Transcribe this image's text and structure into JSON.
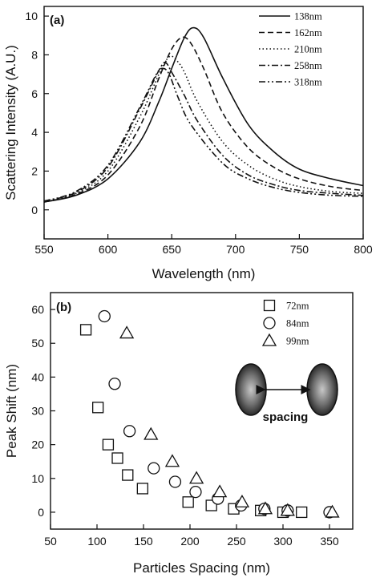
{
  "chart_data": [
    {
      "type": "line",
      "panel_label": "(a)",
      "xlabel": "Wavelength (nm)",
      "ylabel": "Scattering Intensity (A.U.)",
      "xlim": [
        550,
        800
      ],
      "ylim": [
        -1.5,
        10.5
      ],
      "xticks": [
        550,
        600,
        650,
        700,
        750,
        800
      ],
      "yticks": [
        0,
        2,
        4,
        6,
        8,
        10
      ],
      "legend_position": "top-right",
      "series": [
        {
          "name": "138nm",
          "style": "solid",
          "x": [
            550,
            575,
            600,
            625,
            640,
            650,
            660,
            667,
            675,
            690,
            710,
            730,
            750,
            775,
            800
          ],
          "y": [
            0.4,
            0.75,
            1.6,
            3.5,
            5.6,
            7.3,
            8.9,
            9.4,
            8.9,
            6.8,
            4.4,
            3.0,
            2.1,
            1.6,
            1.25
          ]
        },
        {
          "name": "162nm",
          "style": "dashed",
          "x": [
            550,
            575,
            600,
            625,
            640,
            650,
            658,
            665,
            675,
            690,
            710,
            730,
            750,
            775,
            800
          ],
          "y": [
            0.4,
            0.8,
            1.8,
            4.3,
            6.8,
            8.3,
            8.9,
            8.6,
            7.3,
            5.0,
            3.2,
            2.2,
            1.6,
            1.2,
            1.0
          ]
        },
        {
          "name": "210nm",
          "style": "dotted",
          "x": [
            550,
            575,
            600,
            625,
            640,
            648,
            654,
            660,
            670,
            690,
            710,
            730,
            750,
            775,
            800
          ],
          "y": [
            0.4,
            0.85,
            2.0,
            4.8,
            7.0,
            7.9,
            7.7,
            7.1,
            5.6,
            3.5,
            2.3,
            1.6,
            1.2,
            0.95,
            0.85
          ]
        },
        {
          "name": "258nm",
          "style": "dashdot",
          "x": [
            550,
            575,
            600,
            625,
            640,
            645,
            650,
            660,
            670,
            690,
            710,
            730,
            750,
            775,
            800
          ],
          "y": [
            0.45,
            0.9,
            2.2,
            5.2,
            7.2,
            7.6,
            7.1,
            5.9,
            4.6,
            2.8,
            1.8,
            1.3,
            1.0,
            0.85,
            0.75
          ]
        },
        {
          "name": "318nm",
          "style": "dashdotdot",
          "x": [
            550,
            575,
            600,
            625,
            638,
            643,
            648,
            655,
            665,
            690,
            710,
            730,
            750,
            775,
            800
          ],
          "y": [
            0.45,
            0.95,
            2.3,
            5.3,
            7.0,
            7.3,
            7.0,
            5.8,
            4.4,
            2.4,
            1.6,
            1.15,
            0.9,
            0.75,
            0.7
          ]
        }
      ]
    },
    {
      "type": "scatter",
      "panel_label": "(b)",
      "xlabel": "Particles Spacing (nm)",
      "ylabel": "Peak Shift (nm)",
      "xlim": [
        50,
        375
      ],
      "ylim": [
        -5,
        65
      ],
      "xticks": [
        50,
        100,
        150,
        200,
        250,
        300,
        350
      ],
      "yticks": [
        0,
        10,
        20,
        30,
        40,
        50,
        60
      ],
      "legend_position": "top-right",
      "annotation": "spacing",
      "series": [
        {
          "name": "72nm",
          "marker": "square",
          "x": [
            88,
            101,
            112,
            122,
            133,
            149,
            198,
            223,
            247,
            276,
            300,
            320
          ],
          "y": [
            54,
            31,
            20,
            16,
            11,
            7,
            3,
            2,
            1,
            0.5,
            0,
            0
          ]
        },
        {
          "name": "84nm",
          "marker": "circle",
          "x": [
            108,
            119,
            135,
            161,
            184,
            206,
            230,
            255,
            280,
            305,
            350
          ],
          "y": [
            58,
            38,
            24,
            13,
            9,
            6,
            4,
            2,
            1,
            0.5,
            0
          ]
        },
        {
          "name": "99nm",
          "marker": "triangle",
          "x": [
            132,
            158,
            181,
            207,
            232,
            256,
            281,
            305,
            353
          ],
          "y": [
            53,
            23,
            15,
            10,
            6,
            3,
            1,
            0.5,
            0
          ]
        }
      ]
    }
  ]
}
